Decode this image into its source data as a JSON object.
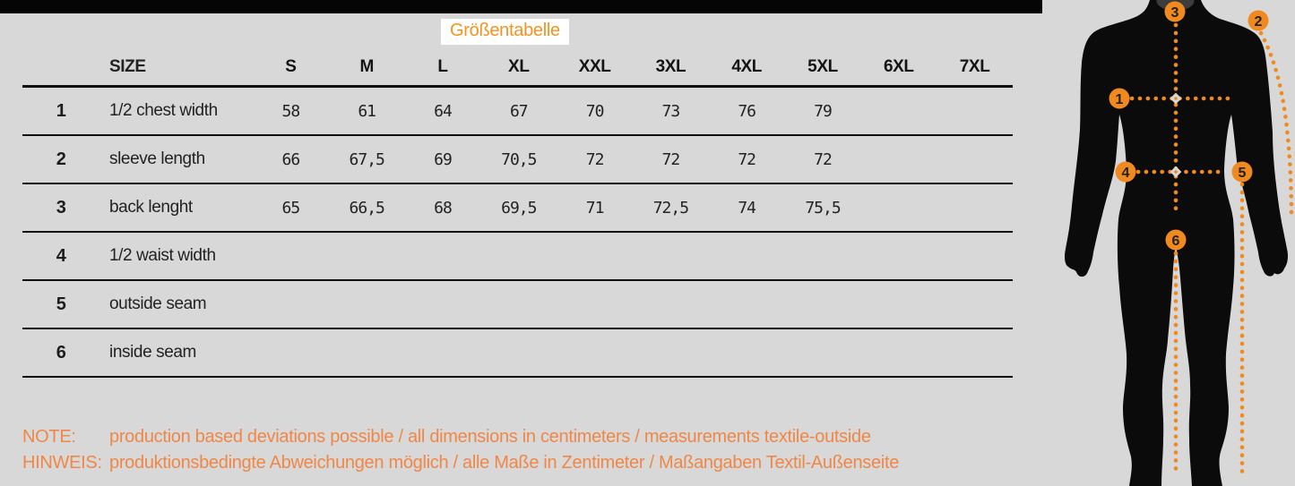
{
  "title": "Größentabelle",
  "table": {
    "size_label": "SIZE",
    "columns": [
      "S",
      "M",
      "L",
      "XL",
      "XXL",
      "3XL",
      "4XL",
      "5XL",
      "6XL",
      "7XL"
    ],
    "rows": [
      {
        "num": "1",
        "label": "1/2 chest width",
        "values": [
          "58",
          "61",
          "64",
          "67",
          "70",
          "73",
          "76",
          "79",
          "",
          ""
        ]
      },
      {
        "num": "2",
        "label": "sleeve length",
        "values": [
          "66",
          "67,5",
          "69",
          "70,5",
          "72",
          "72",
          "72",
          "72",
          "",
          ""
        ]
      },
      {
        "num": "3",
        "label": "back lenght",
        "values": [
          "65",
          "66,5",
          "68",
          "69,5",
          "71",
          "72,5",
          "74",
          "75,5",
          "",
          ""
        ]
      },
      {
        "num": "4",
        "label": "1/2 waist width",
        "values": [
          "",
          "",
          "",
          "",
          "",
          "",
          "",
          "",
          "",
          ""
        ]
      },
      {
        "num": "5",
        "label": "outside seam",
        "values": [
          "",
          "",
          "",
          "",
          "",
          "",
          "",
          "",
          "",
          ""
        ]
      },
      {
        "num": "6",
        "label": "inside seam",
        "values": [
          "",
          "",
          "",
          "",
          "",
          "",
          "",
          "",
          "",
          ""
        ]
      }
    ]
  },
  "notes": [
    {
      "label": "NOTE:",
      "text": "production based deviations possible / all dimensions in centimeters / measurements textile-outside"
    },
    {
      "label": "HINWEIS:",
      "text": "produktionsbedingte Abweichungen möglich / alle Maße in Zentimeter / Maßangaben Textil-Außenseite"
    }
  ],
  "figure": {
    "markers": [
      "1",
      "2",
      "3",
      "4",
      "5",
      "6"
    ]
  },
  "colors": {
    "background": "#d8d8d8",
    "bar_black": "#050505",
    "title_orange": "#f6921e",
    "marker_orange": "#f18a1e",
    "note_orange": "#ef8747"
  }
}
